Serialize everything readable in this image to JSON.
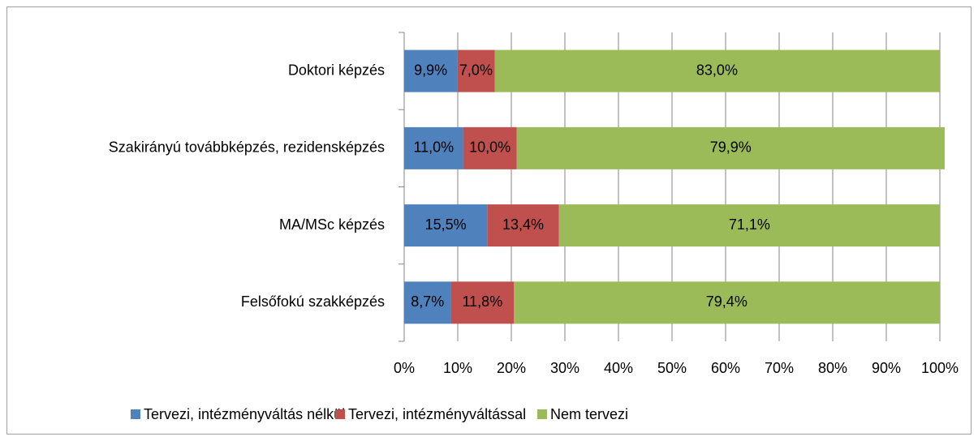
{
  "chart_data": {
    "type": "stacked-bar-horizontal",
    "categories": [
      "Doktori képzés",
      "Szakirányú továbbképzés, rezidensképzés",
      "MA/MSc képzés",
      "Felsőfokú szakképzés"
    ],
    "series": [
      {
        "name": "Tervezi, intézményváltás nélkül",
        "color": "#4f81bd",
        "values": [
          9.9,
          11.0,
          15.5,
          8.7
        ],
        "value_labels": [
          "9,9%",
          "11,0%",
          "15,5%",
          "8,7%"
        ]
      },
      {
        "name": "Tervezi, intézményváltással",
        "color": "#c0504d",
        "values": [
          7.0,
          10.0,
          13.4,
          11.8
        ],
        "value_labels": [
          "7,0%",
          "10,0%",
          "13,4%",
          "11,8%"
        ]
      },
      {
        "name": "Nem tervezi",
        "color": "#9bbb59",
        "values": [
          83.0,
          79.9,
          71.1,
          79.4
        ],
        "value_labels": [
          "83,0%",
          "79,9%",
          "71,1%",
          "79,4%"
        ]
      }
    ],
    "xlim": [
      0,
      100
    ],
    "xticks": [
      {
        "value": 0,
        "label": "0%"
      },
      {
        "value": 10,
        "label": "10%"
      },
      {
        "value": 20,
        "label": "20%"
      },
      {
        "value": 30,
        "label": "30%"
      },
      {
        "value": 40,
        "label": "40%"
      },
      {
        "value": 50,
        "label": "50%"
      },
      {
        "value": 60,
        "label": "60%"
      },
      {
        "value": 70,
        "label": "70%"
      },
      {
        "value": 80,
        "label": "80%"
      },
      {
        "value": 90,
        "label": "90%"
      },
      {
        "value": 100,
        "label": "100%"
      }
    ],
    "grid": true,
    "legend": "bottom"
  }
}
